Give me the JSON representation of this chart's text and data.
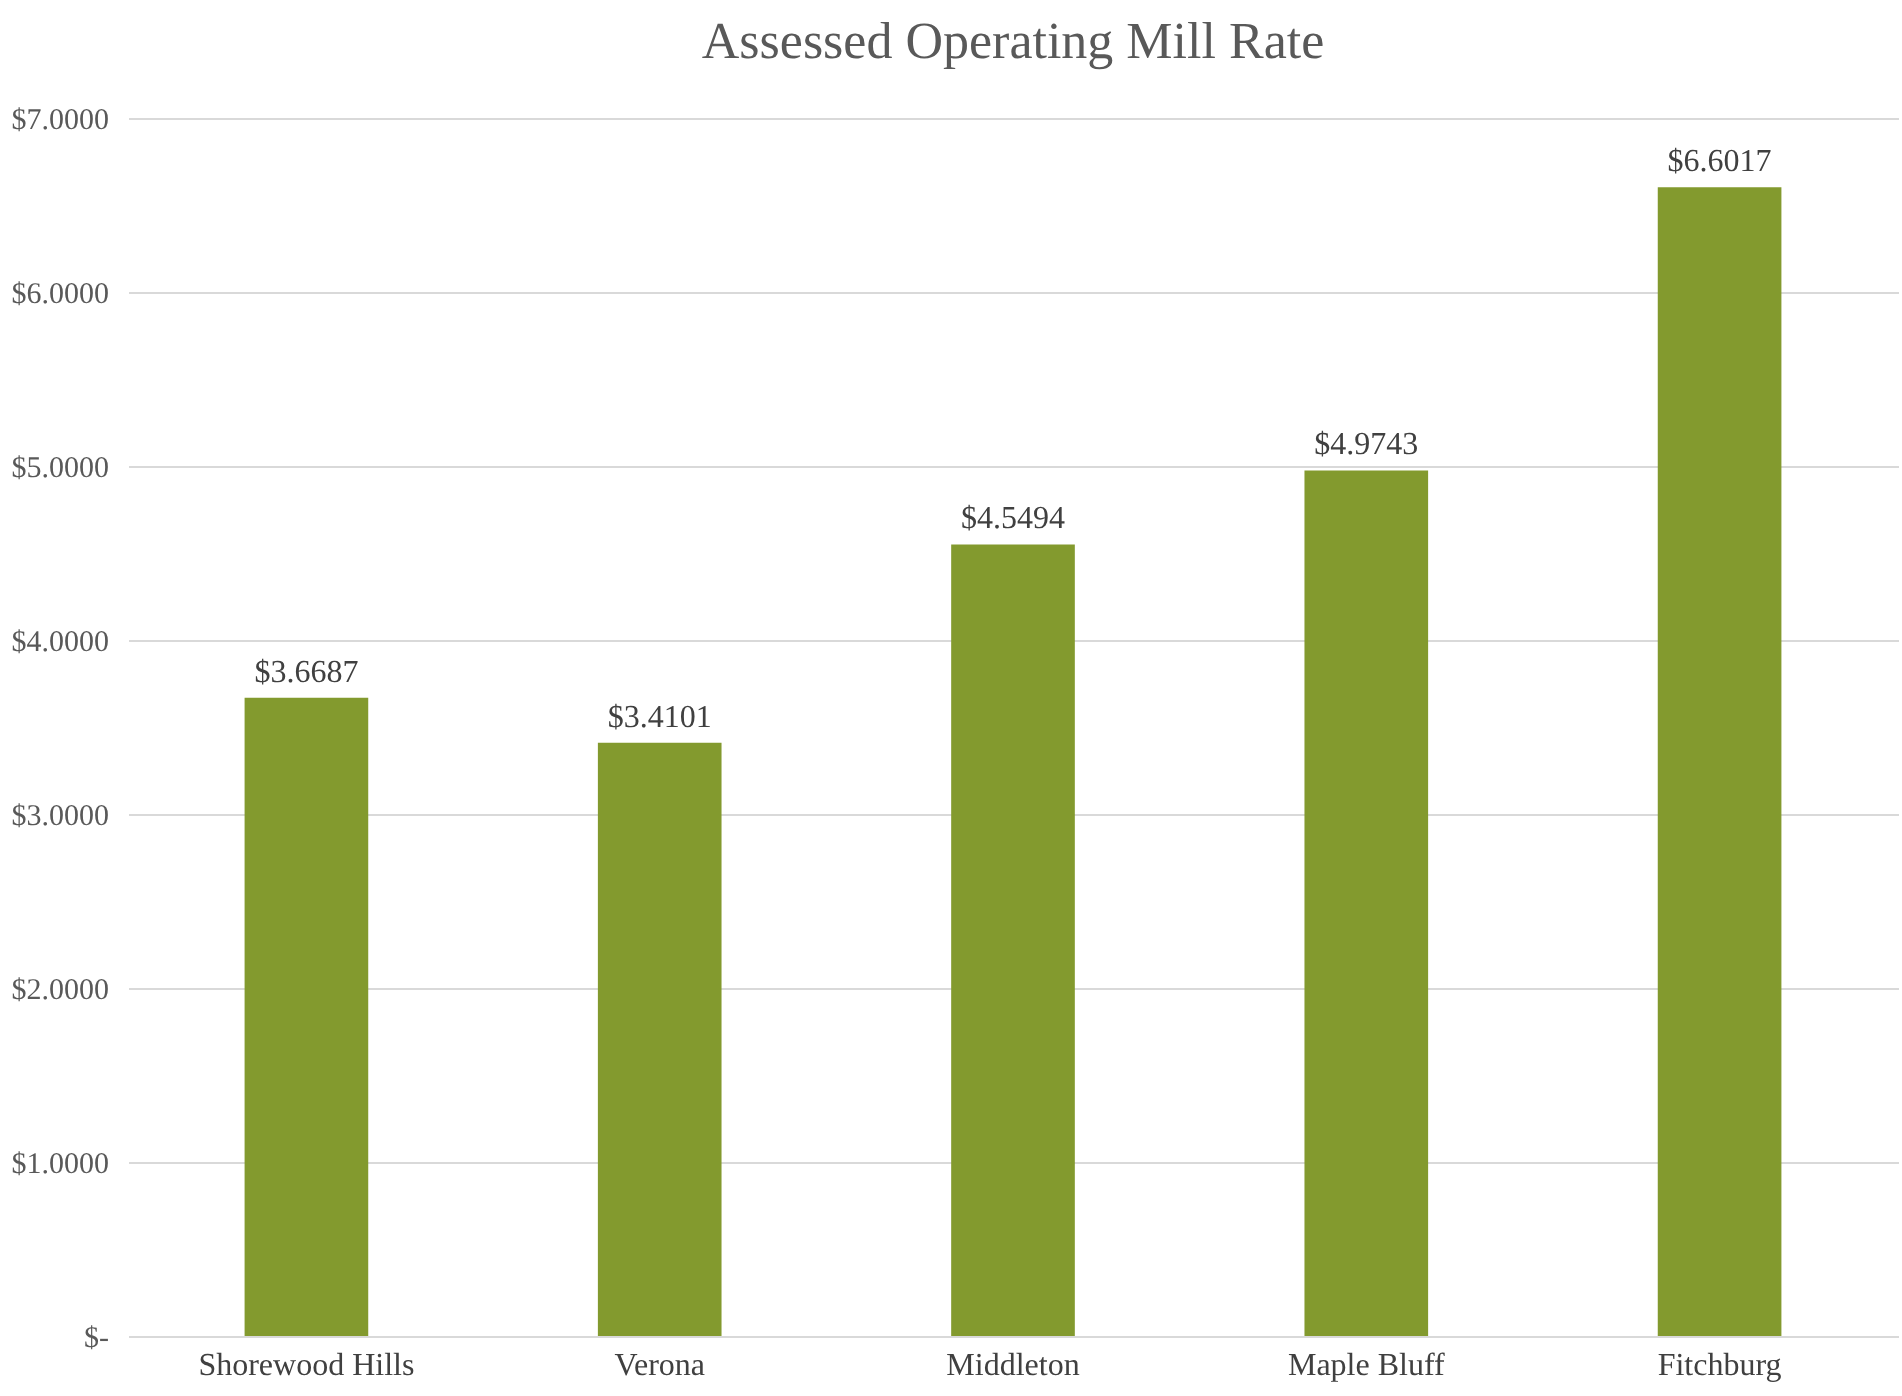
{
  "chart_data": {
    "type": "bar",
    "title": "Assessed Operating Mill Rate",
    "categories": [
      "Shorewood Hills",
      "Verona",
      "Middleton",
      "Maple Bluff",
      "Fitchburg"
    ],
    "values": [
      3.6687,
      3.4101,
      4.5494,
      4.9743,
      6.6017
    ],
    "value_labels": [
      "$3.6687",
      "$3.4101",
      "$4.5494",
      "$4.9743",
      "$6.6017"
    ],
    "color": "#839a2e",
    "ylim": [
      0,
      7
    ],
    "yticks": [
      {
        "value": 0,
        "label": "$-"
      },
      {
        "value": 1,
        "label": "$1.0000"
      },
      {
        "value": 2,
        "label": "$2.0000"
      },
      {
        "value": 3,
        "label": "$3.0000"
      },
      {
        "value": 4,
        "label": "$4.0000"
      },
      {
        "value": 5,
        "label": "$5.0000"
      },
      {
        "value": 6,
        "label": "$6.0000"
      },
      {
        "value": 7,
        "label": "$7.0000"
      }
    ],
    "grid": "y"
  }
}
